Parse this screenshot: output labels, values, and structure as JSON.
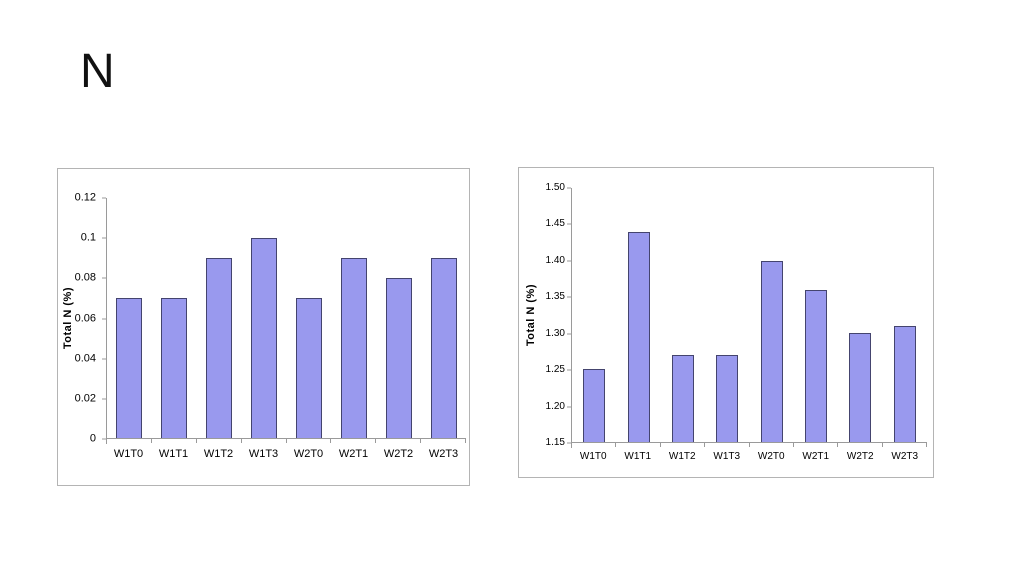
{
  "slide": {
    "title": "N"
  },
  "colors": {
    "bar_fill": "#9999EE",
    "bar_border": "#44446E",
    "axis_line": "#9A9A9A",
    "box_border": "#B4B4B4"
  },
  "chart_data": [
    {
      "type": "bar",
      "title": "",
      "xlabel": "",
      "ylabel": "Total N (%)",
      "categories": [
        "W1T0",
        "W1T1",
        "W1T2",
        "W1T3",
        "W2T0",
        "W2T1",
        "W2T2",
        "W2T3"
      ],
      "values": [
        0.07,
        0.07,
        0.09,
        0.1,
        0.07,
        0.09,
        0.08,
        0.09
      ],
      "ylim": [
        0,
        0.12
      ],
      "yticks": [
        0,
        0.02,
        0.04,
        0.06,
        0.08,
        0.1,
        0.12
      ],
      "ytick_labels": [
        "0",
        "0.02",
        "0.04",
        "0.06",
        "0.08",
        "0.1",
        "0.12"
      ],
      "grid": false,
      "legend": "none"
    },
    {
      "type": "bar",
      "title": "",
      "xlabel": "",
      "ylabel": "Total N (%)",
      "categories": [
        "W1T0",
        "W1T1",
        "W1T2",
        "W1T3",
        "W2T0",
        "W2T1",
        "W2T2",
        "W2T3"
      ],
      "values": [
        1.25,
        1.44,
        1.27,
        1.27,
        1.4,
        1.36,
        1.3,
        1.31
      ],
      "ylim": [
        1.15,
        1.5
      ],
      "yticks": [
        1.15,
        1.2,
        1.25,
        1.3,
        1.35,
        1.4,
        1.45,
        1.5
      ],
      "ytick_labels": [
        "1.15",
        "1.20",
        "1.25",
        "1.30",
        "1.35",
        "1.40",
        "1.45",
        "1.50"
      ],
      "grid": false,
      "legend": "none"
    }
  ]
}
